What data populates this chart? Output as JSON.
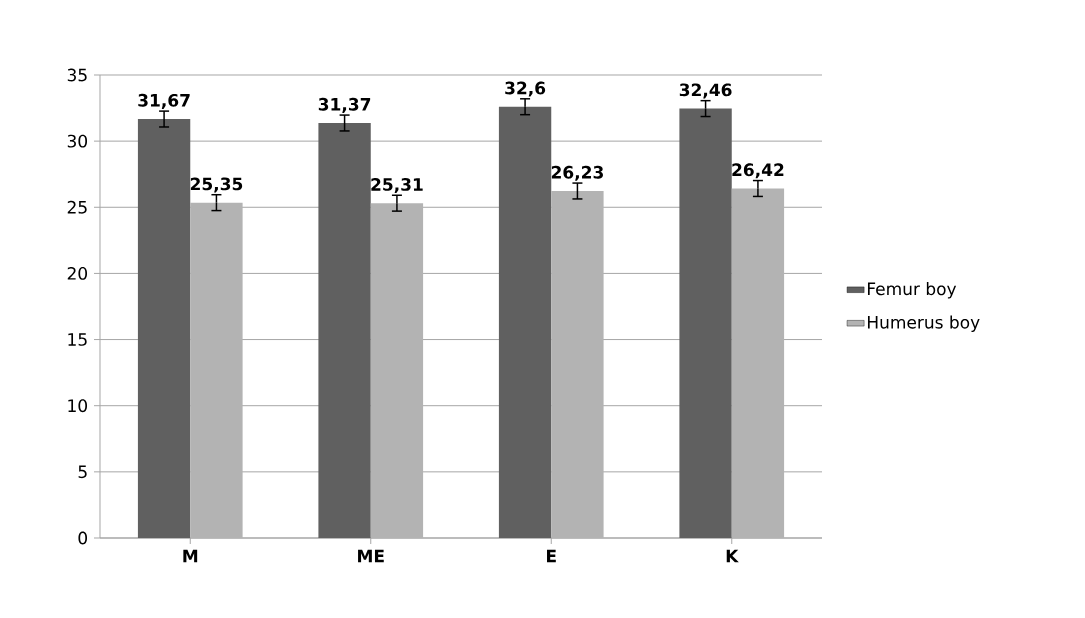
{
  "chart_data": {
    "type": "bar",
    "categories": [
      "M",
      "ME",
      "E",
      "K"
    ],
    "series": [
      {
        "name": "Femur boy",
        "color": "#606060",
        "values": [
          31.67,
          31.37,
          32.6,
          32.46
        ],
        "errors": [
          0.6,
          0.6,
          0.6,
          0.6
        ],
        "value_labels": [
          "31,67",
          "31,37",
          "32,6",
          "32,46"
        ]
      },
      {
        "name": "Humerus boy",
        "color": "#b3b3b3",
        "values": [
          25.35,
          25.31,
          26.23,
          26.42
        ],
        "errors": [
          0.6,
          0.6,
          0.6,
          0.6
        ],
        "value_labels": [
          "25,35",
          "25,31",
          "26,23",
          "26,42"
        ]
      }
    ],
    "ylim": [
      0,
      35
    ],
    "yticks": [
      0,
      5,
      10,
      15,
      20,
      25,
      30,
      35
    ],
    "grid": "y",
    "legend": "right"
  }
}
